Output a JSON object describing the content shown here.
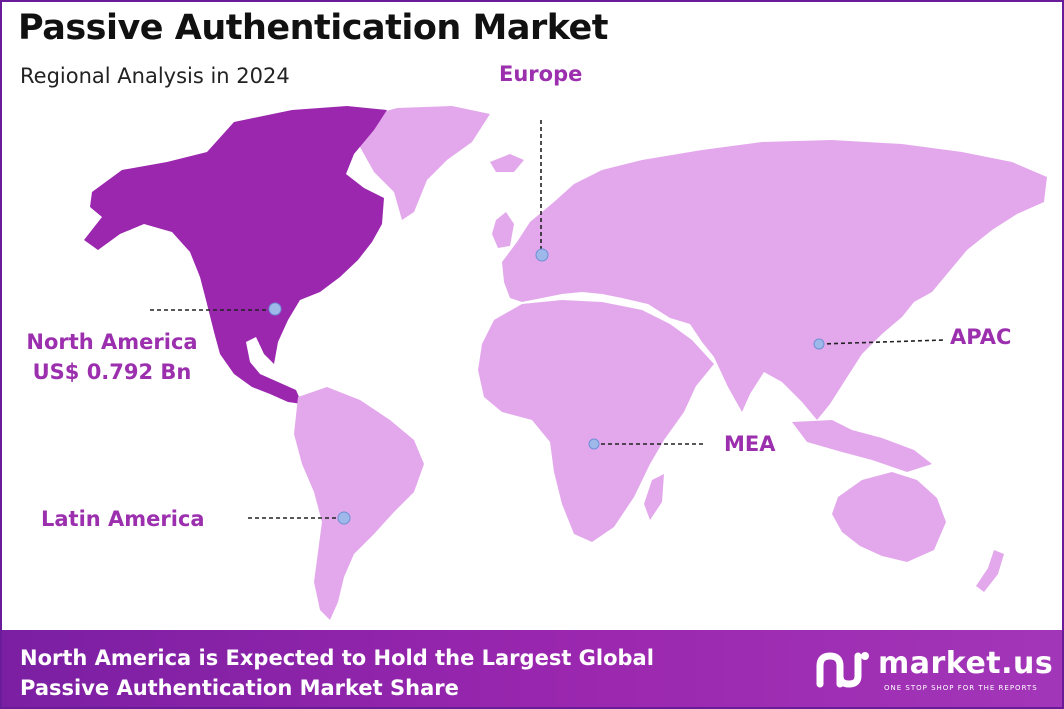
{
  "header": {
    "title": "Passive Authentication Market",
    "subtitle": "Regional Analysis in 2024"
  },
  "regions": [
    {
      "name": "North America",
      "value": "US$ 0.792 Bn",
      "highlighted": true
    },
    {
      "name": "Europe",
      "highlighted": false
    },
    {
      "name": "APAC",
      "highlighted": false
    },
    {
      "name": "MEA",
      "highlighted": false
    },
    {
      "name": "Latin America",
      "highlighted": false
    }
  ],
  "colors": {
    "highlight_region": "#9b27af",
    "other_regions": "#e3a8ec",
    "label_text": "#9b2fae",
    "marker": "#9fb8ea",
    "footer_bg": "#8e24aa"
  },
  "footer": {
    "line1": "North America is Expected to Hold the Largest Global",
    "line2": "Passive Authentication Market Share"
  },
  "brand": {
    "logo_icon": "market-us-logo-icon",
    "name": "market.us",
    "tagline": "ONE STOP SHOP FOR THE REPORTS"
  }
}
